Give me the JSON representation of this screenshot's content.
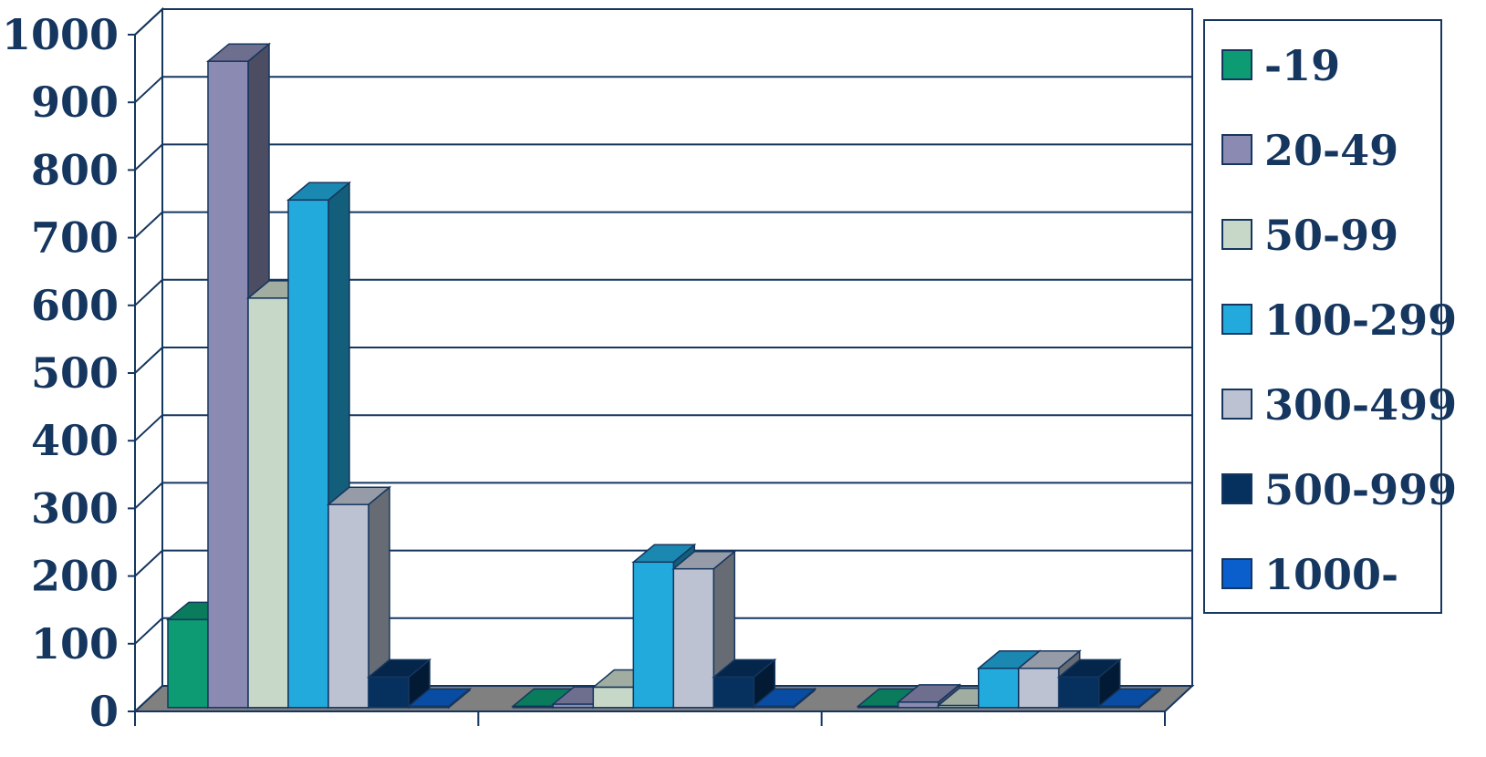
{
  "chart_data": {
    "type": "bar",
    "title": "",
    "xlabel": "",
    "ylabel": "",
    "ylim": [
      0,
      1000
    ],
    "yticks": [
      "0",
      "100",
      "200",
      "300",
      "400",
      "500",
      "600",
      "700",
      "800",
      "900",
      "1000"
    ],
    "categories": [
      "",
      "",
      ""
    ],
    "grid": true,
    "legend_position": "right",
    "three_d": true,
    "series": [
      {
        "name": "-19",
        "color": "#0c9b73",
        "values": [
          130,
          2,
          2
        ]
      },
      {
        "name": "20-49",
        "color": "#8a8ab3",
        "values": [
          955,
          5,
          8
        ]
      },
      {
        "name": "50-99",
        "color": "#c8d8c8",
        "values": [
          605,
          30,
          3
        ]
      },
      {
        "name": "100-299",
        "color": "#22aadd",
        "values": [
          750,
          215,
          58
        ]
      },
      {
        "name": "300-499",
        "color": "#bcc2d2",
        "values": [
          300,
          205,
          58
        ]
      },
      {
        "name": "500-999",
        "color": "#06305e",
        "values": [
          45,
          45,
          45
        ]
      },
      {
        "name": "1000-",
        "color": "#0a5fcc",
        "values": [
          2,
          2,
          2
        ]
      }
    ]
  }
}
